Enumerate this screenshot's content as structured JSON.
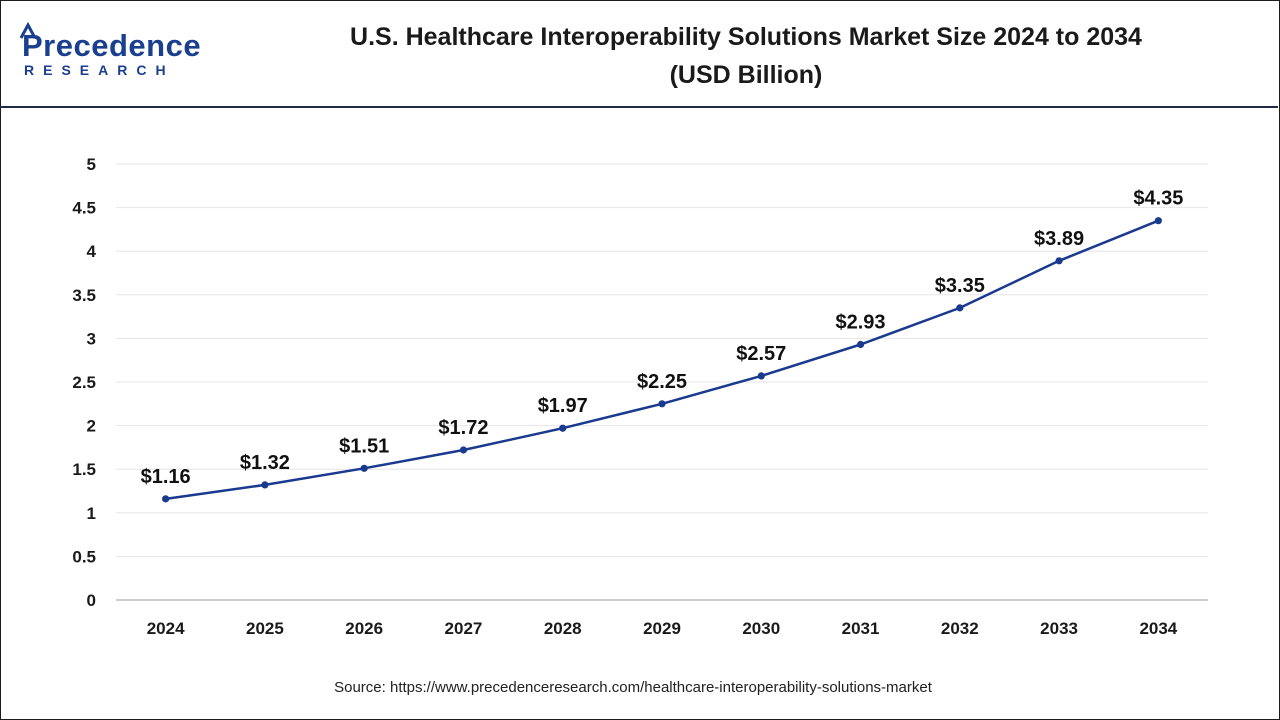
{
  "header": {
    "logo_word": "Precedence",
    "logo_sub": "RESEARCH",
    "title_line1": "U.S. Healthcare Interoperability Solutions Market Size 2024 to 2034",
    "title_line2": "(USD Billion)"
  },
  "source_text": "Source: https://www.precedenceresearch.com/healthcare-interoperability-solutions-market",
  "colors": {
    "line": "#1a3a8f",
    "brand": "#1a3f8f",
    "grid": "#e6e6e6"
  },
  "chart_data": {
    "type": "line",
    "title": "U.S. Healthcare Interoperability Solutions Market Size 2024 to 2034 (USD Billion)",
    "xlabel": "",
    "ylabel": "",
    "categories": [
      "2024",
      "2025",
      "2026",
      "2027",
      "2028",
      "2029",
      "2030",
      "2031",
      "2032",
      "2033",
      "2034"
    ],
    "values": [
      1.16,
      1.32,
      1.51,
      1.72,
      1.97,
      2.25,
      2.57,
      2.93,
      3.35,
      3.89,
      4.35
    ],
    "labels": [
      "$1.16",
      "$1.32",
      "$1.51",
      "$1.72",
      "$1.97",
      "$2.25",
      "$2.57",
      "$2.93",
      "$3.35",
      "$3.89",
      "$4.35"
    ],
    "ylim": [
      0,
      5
    ],
    "yticks": [
      "0",
      "0.5",
      "1",
      "1.5",
      "2",
      "2.5",
      "3",
      "3.5",
      "4",
      "4.5",
      "5"
    ],
    "grid": true,
    "legend": "none"
  }
}
